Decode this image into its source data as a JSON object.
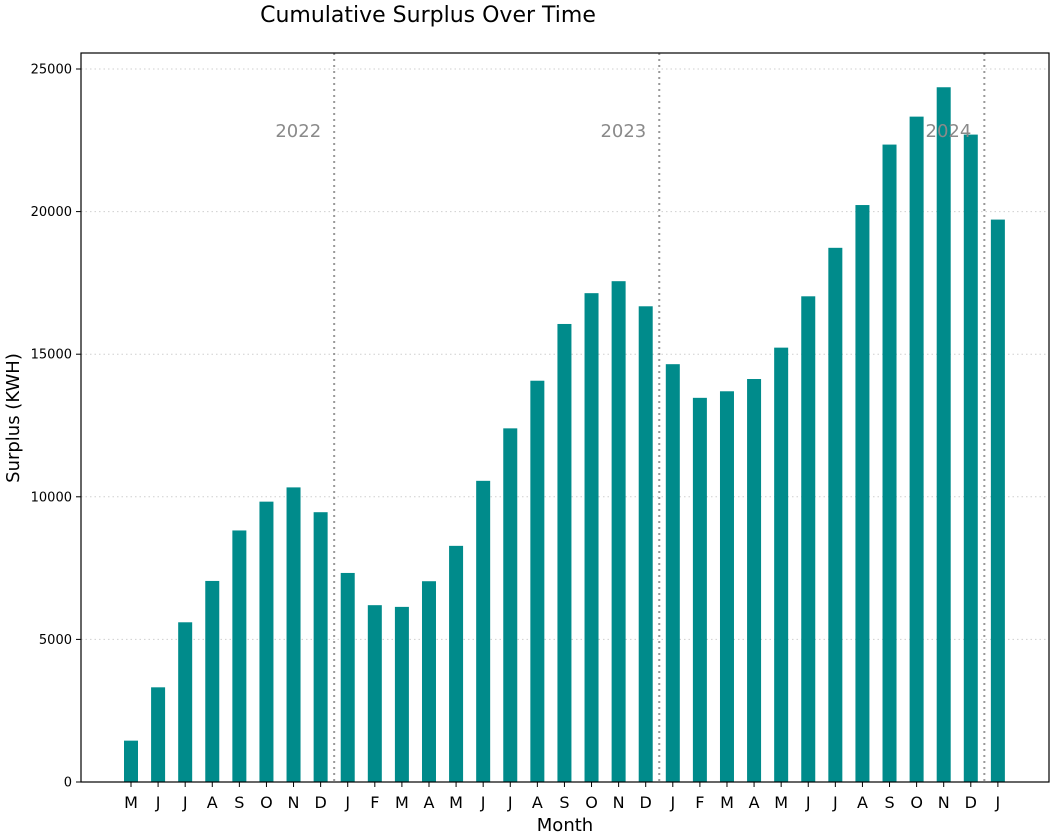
{
  "chart_data": {
    "type": "bar",
    "title": "Cumulative Surplus Over Time",
    "xlabel": "Month",
    "ylabel": "Surplus (KWH)",
    "ylim": [
      0,
      25500
    ],
    "yticks": [
      "0",
      "5000",
      "10000",
      "15000",
      "20000",
      "25000"
    ],
    "grid": "horizontal dotted",
    "bar_color": "#008b8b",
    "divider_color": "#999999",
    "categories": [
      "M",
      "J",
      "J",
      "A",
      "S",
      "O",
      "N",
      "D",
      "J",
      "F",
      "M",
      "A",
      "M",
      "J",
      "J",
      "A",
      "S",
      "O",
      "N",
      "D",
      "J",
      "F",
      "M",
      "A",
      "M",
      "J",
      "J",
      "A",
      "S",
      "O",
      "N",
      "D",
      "J"
    ],
    "values": [
      1450,
      3320,
      5600,
      7050,
      8820,
      9830,
      10330,
      9460,
      7330,
      6200,
      6140,
      7040,
      8280,
      10560,
      12400,
      14070,
      16060,
      17140,
      17560,
      16680,
      14650,
      13470,
      13700,
      14130,
      15230,
      17030,
      18730,
      20230,
      22350,
      23330,
      24360,
      22700,
      19720
    ],
    "year_dividers": [
      {
        "label": "2022",
        "after_index": 7
      },
      {
        "label": "2023",
        "after_index": 19
      },
      {
        "label": "2024",
        "after_index": 31
      }
    ]
  }
}
